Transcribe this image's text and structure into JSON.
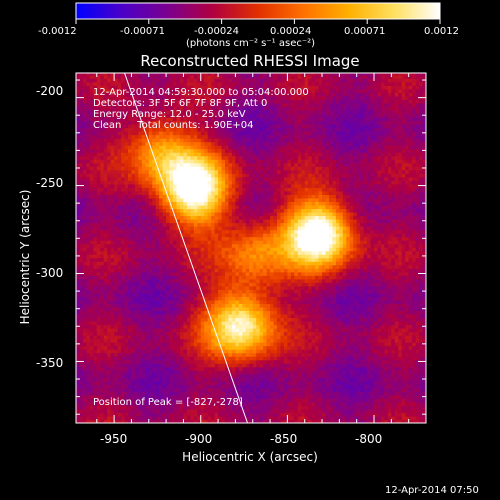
{
  "colorbar": {
    "tick_labels": [
      "-0.0012",
      "-0.00071",
      "-0.00024",
      "0.00024",
      "0.00071",
      "0.0012"
    ],
    "units_label": "(photons cm⁻² s⁻¹ asec⁻²)",
    "range": [
      -0.0012,
      0.0012
    ],
    "colors": [
      "#0000ff",
      "#4a00c8",
      "#7a0090",
      "#b00040",
      "#e03000",
      "#ff7000",
      "#ffb000",
      "#ffe060",
      "#ffffff"
    ]
  },
  "image": {
    "title": "Reconstructed RHESSI Image",
    "info": {
      "time_range": "12-Apr-2014 04:59:30.000 to 05:04:00.000",
      "detectors": "Detectors: 3F 5F 6F 7F 8F 9F, Att 0",
      "energy_range": "Energy Range: 12.0 - 25.0 keV",
      "clean_total": "Clean     Total counts: 1.90E+04"
    },
    "peak_text": "Position of Peak = [-827,-278]",
    "xlabel": "Heliocentric X (arcsec)",
    "ylabel": "Heliocentric Y (arcsec)",
    "xticks": [
      "-950",
      "-900",
      "-850",
      "-800"
    ],
    "yticks": [
      "-200",
      "-250",
      "-300",
      "-350"
    ],
    "xlim": [
      -972,
      -770
    ],
    "ylim": [
      -385,
      -186
    ]
  },
  "timestamp": "12-Apr-2014 07:50",
  "chart_data": {
    "type": "heatmap",
    "title": "Reconstructed RHESSI Image",
    "xlabel": "Heliocentric X (arcsec)",
    "ylabel": "Heliocentric Y (arcsec)",
    "xlim": [
      -972,
      -770
    ],
    "ylim": [
      -385,
      -186
    ],
    "colorbar_range": [
      -0.0012,
      0.0012
    ],
    "sources": [
      {
        "x": -905,
        "y": -253,
        "intensity": 0.00115
      },
      {
        "x": -833,
        "y": -278,
        "intensity": 0.0012
      },
      {
        "x": -878,
        "y": -330,
        "intensity": 0.001
      },
      {
        "x": -925,
        "y": -230,
        "intensity": 0.0006
      },
      {
        "x": -870,
        "y": -290,
        "intensity": 0.0005
      }
    ],
    "limb_line": {
      "x": [
        -944,
        -873
      ],
      "y": [
        -186,
        -385
      ]
    },
    "peak": {
      "x": -827,
      "y": -278
    }
  }
}
